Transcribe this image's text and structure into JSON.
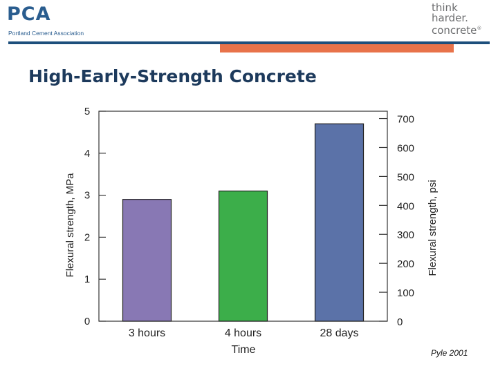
{
  "header": {
    "logo_left": {
      "mark": "PCA",
      "subtitle": "Portland Cement Association"
    },
    "logo_right": {
      "line1": "think",
      "line2": "harder.",
      "line3": "concrete",
      "mark": "®"
    },
    "colors": {
      "blue_rule": "#1d4f7c",
      "orange_accent": "#e8734a"
    }
  },
  "slide": {
    "title": "High-Early-Strength Concrete",
    "credit": "Pyle 2001"
  },
  "chart_data": {
    "type": "bar",
    "title": "",
    "categories": [
      "3 hours",
      "4 hours",
      "28 days"
    ],
    "values": [
      2.9,
      3.1,
      4.7
    ],
    "bar_colors": [
      "#8878b4",
      "#3cae4a",
      "#5b72a8"
    ],
    "xlabel": "Time",
    "ylabel": "Flexural strength, MPa",
    "y2label": "Flexural strength, psi",
    "ylim": [
      0,
      5
    ],
    "yticks": [
      0,
      1,
      2,
      3,
      4,
      5
    ],
    "y2ticks": [
      0,
      100,
      200,
      300,
      400,
      500,
      600,
      700
    ],
    "mpa_per_psi": 0.0068948,
    "grid": false
  }
}
